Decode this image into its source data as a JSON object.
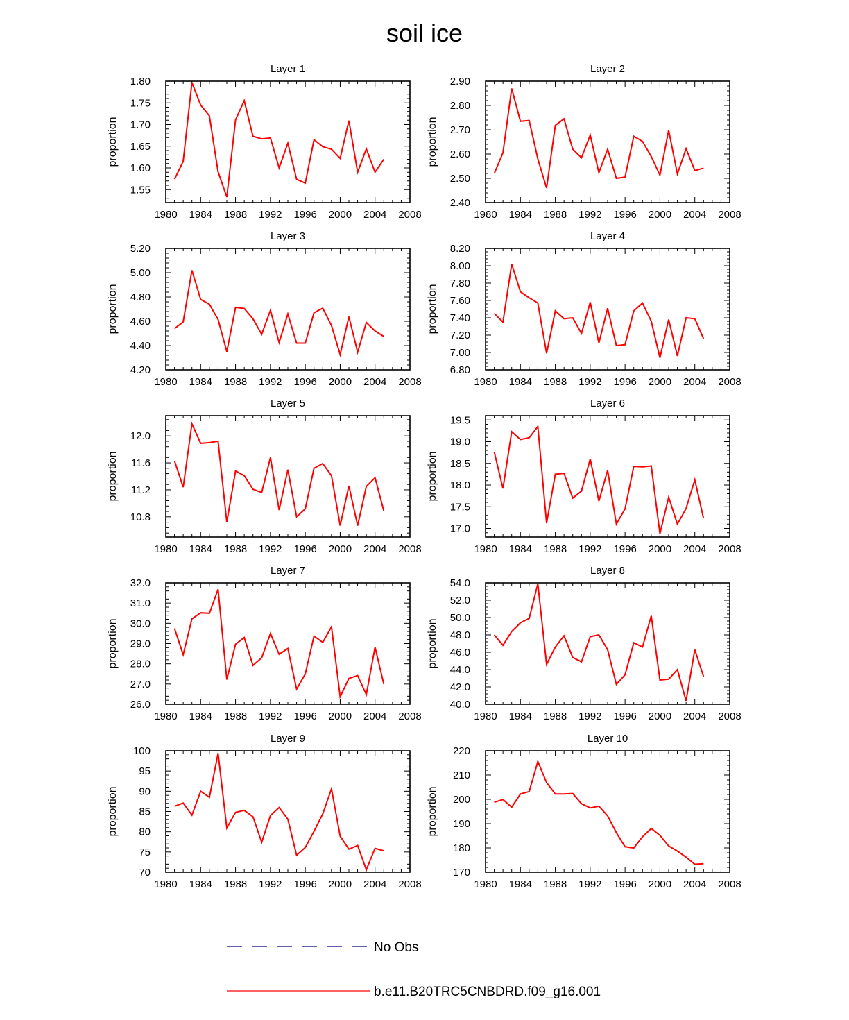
{
  "figure": {
    "title": "soil ice",
    "line_color": "#ff0000",
    "obs_color": "#00007f"
  },
  "legend": {
    "no_obs_label": "No Obs",
    "model_label": "b.e11.B20TRC5CNBDRD.f09_g16.001"
  },
  "chart_data": [
    {
      "type": "line",
      "title": "Layer 1",
      "xlabel": "",
      "ylabel": "proportion",
      "xlim": [
        1980,
        2008
      ],
      "xticks": [
        1980,
        1984,
        1988,
        1992,
        1996,
        2000,
        2004,
        2008
      ],
      "ylim": [
        1.52,
        1.8
      ],
      "yticks": [
        1.55,
        1.6,
        1.65,
        1.7,
        1.75,
        1.8
      ],
      "ytick_labels": [
        "1.55",
        "1.60",
        "1.65",
        "1.70",
        "1.75",
        "1.80"
      ],
      "series": [
        {
          "name": "b.e11.B20TRC5CNBDRD.f09_g16.001",
          "x": [
            1981,
            1982,
            1983,
            1984,
            1985,
            1986,
            1987,
            1988,
            1989,
            1990,
            1991,
            1992,
            1993,
            1994,
            1995,
            1996,
            1997,
            1998,
            1999,
            2000,
            2001,
            2002,
            2003,
            2004,
            2005
          ],
          "values": [
            1.574,
            1.615,
            1.797,
            1.745,
            1.72,
            1.591,
            1.533,
            1.711,
            1.755,
            1.673,
            1.667,
            1.669,
            1.6,
            1.657,
            1.574,
            1.565,
            1.665,
            1.649,
            1.643,
            1.622,
            1.709,
            1.59,
            1.644,
            1.59,
            1.62
          ]
        }
      ]
    },
    {
      "type": "line",
      "title": "Layer 2",
      "xlabel": "",
      "ylabel": "proportion",
      "xlim": [
        1980,
        2008
      ],
      "xticks": [
        1980,
        1984,
        1988,
        1992,
        1996,
        2000,
        2004,
        2008
      ],
      "ylim": [
        2.4,
        2.9
      ],
      "yticks": [
        2.4,
        2.5,
        2.6,
        2.7,
        2.8,
        2.9
      ],
      "ytick_labels": [
        "2.40",
        "2.50",
        "2.60",
        "2.70",
        "2.80",
        "2.90"
      ],
      "series": [
        {
          "name": "b.e11.B20TRC5CNBDRD.f09_g16.001",
          "x": [
            1981,
            1982,
            1983,
            1984,
            1985,
            1986,
            1987,
            1988,
            1989,
            1990,
            1991,
            1992,
            1993,
            1994,
            1995,
            1996,
            1997,
            1998,
            1999,
            2000,
            2001,
            2002,
            2003,
            2004,
            2005
          ],
          "values": [
            2.52,
            2.605,
            2.87,
            2.735,
            2.738,
            2.58,
            2.46,
            2.718,
            2.745,
            2.62,
            2.585,
            2.678,
            2.523,
            2.62,
            2.5,
            2.505,
            2.673,
            2.652,
            2.59,
            2.513,
            2.698,
            2.518,
            2.622,
            2.532,
            2.542
          ]
        }
      ]
    },
    {
      "type": "line",
      "title": "Layer 3",
      "xlabel": "",
      "ylabel": "proportion",
      "xlim": [
        1980,
        2008
      ],
      "xticks": [
        1980,
        1984,
        1988,
        1992,
        1996,
        2000,
        2004,
        2008
      ],
      "ylim": [
        4.2,
        5.2
      ],
      "yticks": [
        4.2,
        4.4,
        4.6,
        4.8,
        5.0,
        5.2
      ],
      "ytick_labels": [
        "4.20",
        "4.40",
        "4.60",
        "4.80",
        "5.00",
        "5.20"
      ],
      "series": [
        {
          "name": "b.e11.B20TRC5CNBDRD.f09_g16.001",
          "x": [
            1981,
            1982,
            1983,
            1984,
            1985,
            1986,
            1987,
            1988,
            1989,
            1990,
            1991,
            1992,
            1993,
            1994,
            1995,
            1996,
            1997,
            1998,
            1999,
            2000,
            2001,
            2002,
            2003,
            2004,
            2005
          ],
          "values": [
            4.54,
            4.595,
            5.02,
            4.78,
            4.74,
            4.615,
            4.35,
            4.715,
            4.705,
            4.62,
            4.493,
            4.69,
            4.425,
            4.66,
            4.42,
            4.42,
            4.67,
            4.708,
            4.565,
            4.325,
            4.638,
            4.345,
            4.59,
            4.52,
            4.475
          ]
        }
      ]
    },
    {
      "type": "line",
      "title": "Layer 4",
      "xlabel": "",
      "ylabel": "proportion",
      "xlim": [
        1980,
        2008
      ],
      "xticks": [
        1980,
        1984,
        1988,
        1992,
        1996,
        2000,
        2004,
        2008
      ],
      "ylim": [
        6.8,
        8.2
      ],
      "yticks": [
        6.8,
        7.0,
        7.2,
        7.4,
        7.6,
        7.8,
        8.0,
        8.2
      ],
      "ytick_labels": [
        "6.80",
        "7.00",
        "7.20",
        "7.40",
        "7.60",
        "7.80",
        "8.00",
        "8.20"
      ],
      "series": [
        {
          "name": "b.e11.B20TRC5CNBDRD.f09_g16.001",
          "x": [
            1981,
            1982,
            1983,
            1984,
            1985,
            1986,
            1987,
            1988,
            1989,
            1990,
            1991,
            1992,
            1993,
            1994,
            1995,
            1996,
            1997,
            1998,
            1999,
            2000,
            2001,
            2002,
            2003,
            2004,
            2005
          ],
          "values": [
            7.45,
            7.35,
            8.02,
            7.7,
            7.63,
            7.57,
            6.99,
            7.48,
            7.39,
            7.4,
            7.22,
            7.58,
            7.11,
            7.51,
            7.08,
            7.09,
            7.48,
            7.57,
            7.36,
            6.94,
            7.38,
            6.96,
            7.4,
            7.39,
            7.16
          ]
        }
      ]
    },
    {
      "type": "line",
      "title": "Layer 5",
      "xlabel": "",
      "ylabel": "proportion",
      "xlim": [
        1980,
        2008
      ],
      "xticks": [
        1980,
        1984,
        1988,
        1992,
        1996,
        2000,
        2004,
        2008
      ],
      "ylim": [
        10.5,
        12.3
      ],
      "yticks": [
        10.8,
        11.2,
        11.6,
        12.0
      ],
      "ytick_labels": [
        "10.8",
        "11.2",
        "11.6",
        "12.0"
      ],
      "series": [
        {
          "name": "b.e11.B20TRC5CNBDRD.f09_g16.001",
          "x": [
            1981,
            1982,
            1983,
            1984,
            1985,
            1986,
            1987,
            1988,
            1989,
            1990,
            1991,
            1992,
            1993,
            1994,
            1995,
            1996,
            1997,
            1998,
            1999,
            2000,
            2001,
            2002,
            2003,
            2004,
            2005
          ],
          "values": [
            11.63,
            11.24,
            12.18,
            11.89,
            11.9,
            11.92,
            10.72,
            11.48,
            11.41,
            11.21,
            11.16,
            11.68,
            10.9,
            11.5,
            10.8,
            10.92,
            11.52,
            11.59,
            11.41,
            10.67,
            11.26,
            10.67,
            11.25,
            11.38,
            10.89
          ]
        }
      ]
    },
    {
      "type": "line",
      "title": "Layer 6",
      "xlabel": "",
      "ylabel": "proportion",
      "xlim": [
        1980,
        2008
      ],
      "xticks": [
        1980,
        1984,
        1988,
        1992,
        1996,
        2000,
        2004,
        2008
      ],
      "ylim": [
        16.8,
        19.6
      ],
      "yticks": [
        17.0,
        17.5,
        18.0,
        18.5,
        19.0,
        19.5
      ],
      "ytick_labels": [
        "17.0",
        "17.5",
        "18.0",
        "18.5",
        "19.0",
        "19.5"
      ],
      "series": [
        {
          "name": "b.e11.B20TRC5CNBDRD.f09_g16.001",
          "x": [
            1981,
            1982,
            1983,
            1984,
            1985,
            1986,
            1987,
            1988,
            1989,
            1990,
            1991,
            1992,
            1993,
            1994,
            1995,
            1996,
            1997,
            1998,
            1999,
            2000,
            2001,
            2002,
            2003,
            2004,
            2005
          ],
          "values": [
            18.76,
            17.92,
            19.23,
            19.05,
            19.09,
            19.35,
            17.12,
            18.25,
            18.27,
            17.7,
            17.86,
            18.6,
            17.63,
            18.34,
            17.1,
            17.45,
            18.43,
            18.42,
            18.44,
            16.88,
            17.72,
            17.1,
            17.46,
            18.12,
            17.23
          ]
        }
      ]
    },
    {
      "type": "line",
      "title": "Layer 7",
      "xlabel": "",
      "ylabel": "proportion",
      "xlim": [
        1980,
        2008
      ],
      "xticks": [
        1980,
        1984,
        1988,
        1992,
        1996,
        2000,
        2004,
        2008
      ],
      "ylim": [
        26.0,
        32.0
      ],
      "yticks": [
        26.0,
        27.0,
        28.0,
        29.0,
        30.0,
        31.0,
        32.0
      ],
      "ytick_labels": [
        "26.0",
        "27.0",
        "28.0",
        "29.0",
        "30.0",
        "31.0",
        "32.0"
      ],
      "series": [
        {
          "name": "b.e11.B20TRC5CNBDRD.f09_g16.001",
          "x": [
            1981,
            1982,
            1983,
            1984,
            1985,
            1986,
            1987,
            1988,
            1989,
            1990,
            1991,
            1992,
            1993,
            1994,
            1995,
            1996,
            1997,
            1998,
            1999,
            2000,
            2001,
            2002,
            2003,
            2004,
            2005
          ],
          "values": [
            29.75,
            28.45,
            30.22,
            30.52,
            30.5,
            31.68,
            27.22,
            28.97,
            29.3,
            27.92,
            28.3,
            29.5,
            28.47,
            28.76,
            26.75,
            27.5,
            29.37,
            29.06,
            29.83,
            26.37,
            27.28,
            27.42,
            26.48,
            28.82,
            27.0
          ]
        }
      ]
    },
    {
      "type": "line",
      "title": "Layer 8",
      "xlabel": "",
      "ylabel": "proportion",
      "xlim": [
        1980,
        2008
      ],
      "xticks": [
        1980,
        1984,
        1988,
        1992,
        1996,
        2000,
        2004,
        2008
      ],
      "ylim": [
        40.0,
        54.0
      ],
      "yticks": [
        40.0,
        42.0,
        44.0,
        46.0,
        48.0,
        50.0,
        52.0,
        54.0
      ],
      "ytick_labels": [
        "40.0",
        "42.0",
        "44.0",
        "46.0",
        "48.0",
        "50.0",
        "52.0",
        "54.0"
      ],
      "series": [
        {
          "name": "b.e11.B20TRC5CNBDRD.f09_g16.001",
          "x": [
            1981,
            1982,
            1983,
            1984,
            1985,
            1986,
            1987,
            1988,
            1989,
            1990,
            1991,
            1992,
            1993,
            1994,
            1995,
            1996,
            1997,
            1998,
            1999,
            2000,
            2001,
            2002,
            2003,
            2004,
            2005
          ],
          "values": [
            48.0,
            46.8,
            48.4,
            49.4,
            49.9,
            53.9,
            44.6,
            46.6,
            47.9,
            45.4,
            44.9,
            47.8,
            48.0,
            46.3,
            42.3,
            43.4,
            47.1,
            46.6,
            50.2,
            42.8,
            42.9,
            44.0,
            40.4,
            46.3,
            43.2
          ]
        }
      ]
    },
    {
      "type": "line",
      "title": "Layer 9",
      "xlabel": "",
      "ylabel": "proportion",
      "xlim": [
        1980,
        2008
      ],
      "xticks": [
        1980,
        1984,
        1988,
        1992,
        1996,
        2000,
        2004,
        2008
      ],
      "ylim": [
        70,
        100
      ],
      "yticks": [
        70,
        75,
        80,
        85,
        90,
        95,
        100
      ],
      "ytick_labels": [
        "70",
        "75",
        "80",
        "85",
        "90",
        "95",
        "100"
      ],
      "series": [
        {
          "name": "b.e11.B20TRC5CNBDRD.f09_g16.001",
          "x": [
            1981,
            1982,
            1983,
            1984,
            1985,
            1986,
            1987,
            1988,
            1989,
            1990,
            1991,
            1992,
            1993,
            1994,
            1995,
            1996,
            1997,
            1998,
            1999,
            2000,
            2001,
            2002,
            2003,
            2004,
            2005
          ],
          "values": [
            86.3,
            87.1,
            84.1,
            90.0,
            88.5,
            99.4,
            80.9,
            84.8,
            85.3,
            83.7,
            77.4,
            84.0,
            86.0,
            83.1,
            74.2,
            76.1,
            80.1,
            84.4,
            90.6,
            78.9,
            75.7,
            76.6,
            70.6,
            75.9,
            75.3
          ]
        }
      ]
    },
    {
      "type": "line",
      "title": "Layer 10",
      "xlabel": "",
      "ylabel": "proportion",
      "xlim": [
        1980,
        2008
      ],
      "xticks": [
        1980,
        1984,
        1988,
        1992,
        1996,
        2000,
        2004,
        2008
      ],
      "ylim": [
        170,
        220
      ],
      "yticks": [
        170,
        180,
        190,
        200,
        210,
        220
      ],
      "ytick_labels": [
        "170",
        "180",
        "190",
        "200",
        "210",
        "220"
      ],
      "series": [
        {
          "name": "b.e11.B20TRC5CNBDRD.f09_g16.001",
          "x": [
            1981,
            1982,
            1983,
            1984,
            1985,
            1986,
            1987,
            1988,
            1989,
            1990,
            1991,
            1992,
            1993,
            1994,
            1995,
            1996,
            1997,
            1998,
            1999,
            2000,
            2001,
            2002,
            2003,
            2004,
            2005
          ],
          "values": [
            198.8,
            199.9,
            196.8,
            202.2,
            203.2,
            215.6,
            206.9,
            202.2,
            202.2,
            202.4,
            198.2,
            196.5,
            197.2,
            193.2,
            186.3,
            180.5,
            180.0,
            184.6,
            188.0,
            185.2,
            180.8,
            178.7,
            176.2,
            173.3,
            173.5
          ]
        }
      ]
    }
  ]
}
